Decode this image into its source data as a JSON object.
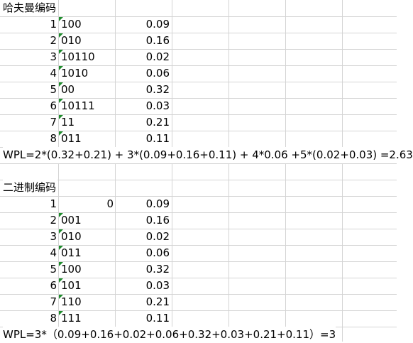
{
  "sections": [
    {
      "title": "哈夫曼编码",
      "rows": [
        {
          "index": "1",
          "code": "100",
          "prob": "0.09"
        },
        {
          "index": "2",
          "code": "010",
          "prob": "0.16"
        },
        {
          "index": "3",
          "code": "10110",
          "prob": "0.02"
        },
        {
          "index": "4",
          "code": "1010",
          "prob": "0.06"
        },
        {
          "index": "5",
          "code": "00",
          "prob": "0.32"
        },
        {
          "index": "6",
          "code": "10111",
          "prob": "0.03"
        },
        {
          "index": "7",
          "code": "11",
          "prob": "0.21"
        },
        {
          "index": "8",
          "code": "011",
          "prob": "0.11"
        }
      ],
      "formula": "WPL=2*(0.32+0.21) + 3*(0.09+0.16+0.11) + 4*0.06 +5*(0.02+0.03) =2.63"
    },
    {
      "title": "二进制编码",
      "rows": [
        {
          "index": "1",
          "code": "0",
          "prob": "0.09",
          "numeric": true
        },
        {
          "index": "2",
          "code": "001",
          "prob": "0.16"
        },
        {
          "index": "3",
          "code": "010",
          "prob": "0.02"
        },
        {
          "index": "4",
          "code": "011",
          "prob": "0.06"
        },
        {
          "index": "5",
          "code": "100",
          "prob": "0.32"
        },
        {
          "index": "6",
          "code": "101",
          "prob": "0.03"
        },
        {
          "index": "7",
          "code": "110",
          "prob": "0.21"
        },
        {
          "index": "8",
          "code": "111",
          "prob": "0.11"
        }
      ],
      "formula": "WPL=3*（0.09+0.16+0.02+0.06+0.32+0.03+0.21+0.11）=3"
    }
  ],
  "colors": {
    "gridline": "#d4d4d4",
    "text_indicator": "#1e8c2c"
  }
}
